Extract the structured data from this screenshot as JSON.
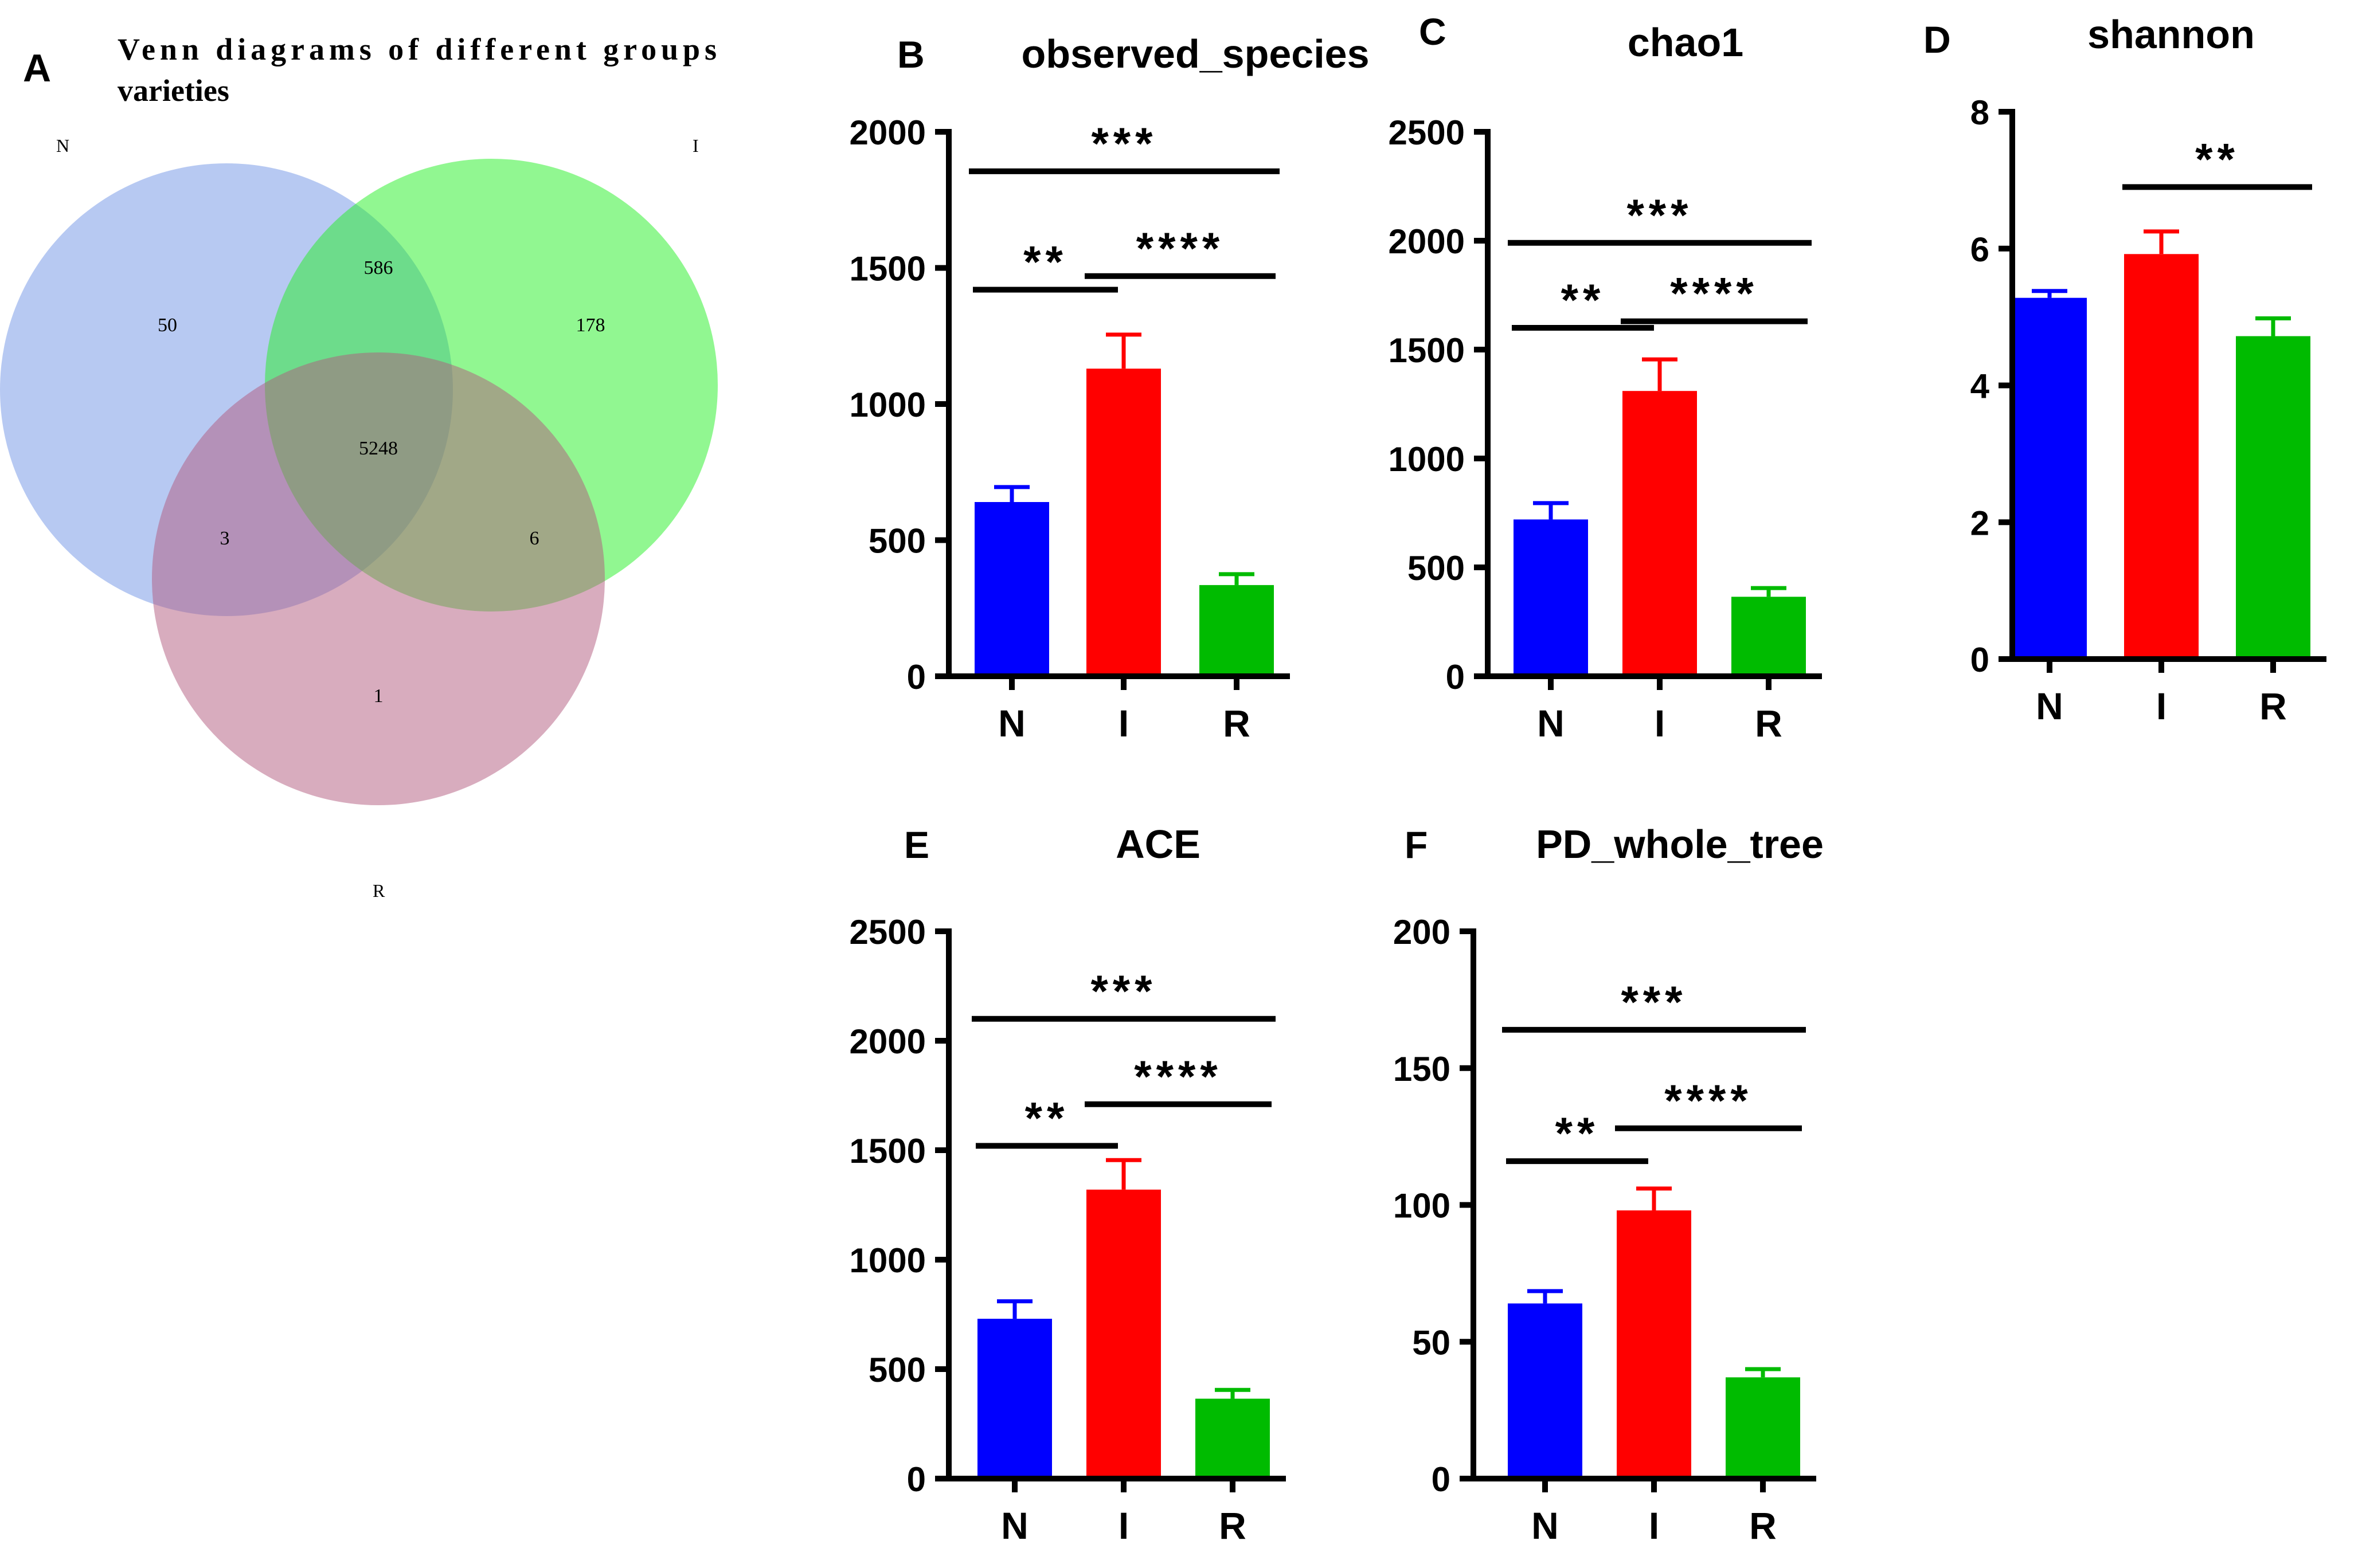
{
  "venn": {
    "panel_label": "A",
    "title_line1": "Venn diagrams of different groups",
    "title_line2": "varieties",
    "set_labels": [
      "N",
      "I",
      "R"
    ],
    "colors": [
      "#6f93e6",
      "#23ef23",
      "#b25a7e"
    ],
    "regions": {
      "n_only": "50",
      "n_i": "586",
      "i_only": "178",
      "n_i_r": "5248",
      "n_r": "3",
      "i_r": "6",
      "r_only": "1"
    }
  },
  "chart_data": [
    {
      "panel_label": "B",
      "type": "bar",
      "title": "observed_species",
      "categories": [
        "N",
        "I",
        "R"
      ],
      "values": [
        640,
        1130,
        335
      ],
      "errors": [
        55,
        125,
        40
      ],
      "colors": [
        "#0000ff",
        "#ff0000",
        "#00bb00"
      ],
      "ylim": [
        0,
        2000
      ],
      "yticks": [
        0,
        500,
        1000,
        1500,
        2000
      ],
      "xlabel": "",
      "ylabel": "",
      "significance": [
        {
          "from": 0,
          "to": 2,
          "y": 1855,
          "label": "***"
        },
        {
          "from": 0,
          "to": 1,
          "y": 1420,
          "label": "**"
        },
        {
          "from": 1,
          "to": 2,
          "y": 1470,
          "label": "****"
        }
      ]
    },
    {
      "panel_label": "C",
      "type": "bar",
      "title": "chao1",
      "categories": [
        "N",
        "I",
        "R"
      ],
      "values": [
        720,
        1310,
        365
      ],
      "errors": [
        75,
        145,
        40
      ],
      "colors": [
        "#0000ff",
        "#ff0000",
        "#00bb00"
      ],
      "ylim": [
        0,
        2500
      ],
      "yticks": [
        0,
        500,
        1000,
        1500,
        2000,
        2500
      ],
      "xlabel": "",
      "ylabel": "",
      "significance": [
        {
          "from": 0,
          "to": 2,
          "y": 1990,
          "label": "***"
        },
        {
          "from": 0,
          "to": 1,
          "y": 1600,
          "label": "**"
        },
        {
          "from": 1,
          "to": 2,
          "y": 1630,
          "label": "****"
        }
      ]
    },
    {
      "panel_label": "D",
      "type": "bar",
      "title": "shannon",
      "categories": [
        "N",
        "I",
        "R"
      ],
      "values": [
        5.28,
        5.92,
        4.72
      ],
      "errors": [
        0.1,
        0.33,
        0.26
      ],
      "colors": [
        "#0000ff",
        "#ff0000",
        "#00bb00"
      ],
      "ylim": [
        0,
        8
      ],
      "yticks": [
        0,
        2,
        4,
        6,
        8
      ],
      "xlabel": "",
      "ylabel": "",
      "significance": [
        {
          "from": 1,
          "to": 2,
          "y": 6.9,
          "label": "**"
        }
      ]
    },
    {
      "panel_label": "E",
      "type": "bar",
      "title": "ACE",
      "categories": [
        "N",
        "I",
        "R"
      ],
      "values": [
        730,
        1320,
        365
      ],
      "errors": [
        80,
        135,
        40
      ],
      "colors": [
        "#0000ff",
        "#ff0000",
        "#00bb00"
      ],
      "ylim": [
        0,
        2500
      ],
      "yticks": [
        0,
        500,
        1000,
        1500,
        2000,
        2500
      ],
      "xlabel": "",
      "ylabel": "",
      "significance": [
        {
          "from": 0,
          "to": 2,
          "y": 2100,
          "label": "***"
        },
        {
          "from": 0,
          "to": 1,
          "y": 1520,
          "label": "**"
        },
        {
          "from": 1,
          "to": 2,
          "y": 1710,
          "label": "****"
        }
      ]
    },
    {
      "panel_label": "F",
      "type": "bar",
      "title": "PD_whole_tree",
      "categories": [
        "N",
        "I",
        "R"
      ],
      "values": [
        64,
        98,
        37
      ],
      "errors": [
        4.5,
        8,
        3
      ],
      "colors": [
        "#0000ff",
        "#ff0000",
        "#00bb00"
      ],
      "ylim": [
        0,
        200
      ],
      "yticks": [
        0,
        50,
        100,
        150,
        200
      ],
      "xlabel": "",
      "ylabel": "",
      "significance": [
        {
          "from": 0,
          "to": 2,
          "y": 164,
          "label": "***"
        },
        {
          "from": 0,
          "to": 1,
          "y": 116,
          "label": "**"
        },
        {
          "from": 1,
          "to": 2,
          "y": 128,
          "label": "****"
        }
      ]
    }
  ]
}
